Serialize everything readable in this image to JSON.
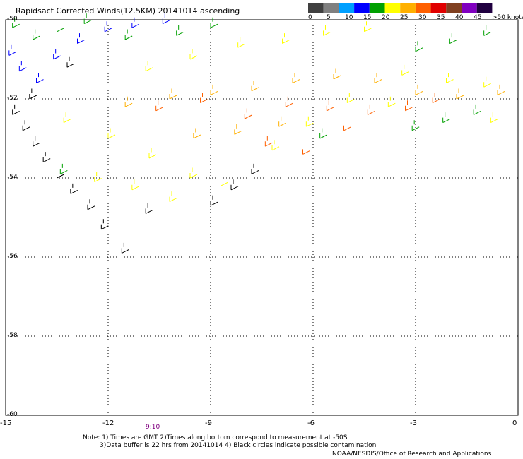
{
  "title": "Rapidsact Corrected Winds(12.5KM) 20141014 ascending",
  "legend": {
    "labels": [
      "0",
      "5",
      "10",
      "15",
      "20",
      "25",
      "30",
      "35",
      "40",
      "45",
      ">50 knots"
    ],
    "colors": [
      "#404040",
      "#808080",
      "#00a0ff",
      "#0000ff",
      "#00a000",
      "#ffff00",
      "#ffb000",
      "#ff6000",
      "#e00000",
      "#804020",
      "#8000c0",
      "#200040"
    ]
  },
  "axes": {
    "x_ticks": [
      "-15",
      "-12",
      "-9",
      "-6",
      "-3",
      "0"
    ],
    "y_ticks": [
      "-50",
      "-52",
      "-54",
      "-56",
      "-58",
      "-60"
    ]
  },
  "time_label": "9:10",
  "notes": {
    "line1": "Note: 1) Times are GMT 2)Times along bottom correspond to measurement at -50S",
    "line2": "3)Data buffer is 22 hrs from 20141014 4) Black circles indicate possible contamination",
    "credit": "NOAA/NESDIS/Office of Research and Applications"
  },
  "chart_data": {
    "type": "scatter",
    "title": "Rapidsact Corrected Winds(12.5KM) 20141014 ascending",
    "xlabel": "",
    "ylabel": "",
    "xlim": [
      -15,
      0
    ],
    "ylim": [
      -60,
      -50
    ],
    "series": [
      {
        "name": "0-5",
        "color": "#000000",
        "points": [
          [
            -14.8,
            -52.4
          ],
          [
            -14.5,
            -52.8
          ],
          [
            -14.2,
            -53.2
          ],
          [
            -13.9,
            -53.6
          ],
          [
            -13.5,
            -54.0
          ],
          [
            -13.1,
            -54.4
          ],
          [
            -12.6,
            -54.8
          ],
          [
            -12.2,
            -55.3
          ],
          [
            -11.6,
            -55.9
          ],
          [
            -10.9,
            -54.9
          ],
          [
            -9.0,
            -54.7
          ],
          [
            -8.4,
            -54.3
          ],
          [
            -7.8,
            -53.9
          ],
          [
            -14.3,
            -52.0
          ],
          [
            -13.2,
            -51.2
          ]
        ]
      },
      {
        "name": "5-10",
        "color": "#0000ff",
        "points": [
          [
            -14.6,
            -51.3
          ],
          [
            -14.1,
            -51.6
          ],
          [
            -13.6,
            -51.0
          ],
          [
            -12.9,
            -50.6
          ],
          [
            -12.1,
            -50.3
          ],
          [
            -11.3,
            -50.2
          ],
          [
            -10.4,
            -50.1
          ],
          [
            -14.9,
            -50.9
          ]
        ]
      },
      {
        "name": "10-15",
        "color": "#00a000",
        "points": [
          [
            -14.8,
            -50.2
          ],
          [
            -14.2,
            -50.5
          ],
          [
            -13.5,
            -50.3
          ],
          [
            -12.7,
            -50.1
          ],
          [
            -11.5,
            -50.5
          ],
          [
            -10.0,
            -50.4
          ],
          [
            -9.0,
            -50.2
          ],
          [
            -3.0,
            -50.8
          ],
          [
            -2.0,
            -50.6
          ],
          [
            -1.0,
            -50.4
          ],
          [
            -3.1,
            -52.8
          ],
          [
            -2.2,
            -52.6
          ],
          [
            -1.3,
            -52.4
          ],
          [
            -5.8,
            -53.0
          ],
          [
            -13.4,
            -53.9
          ]
        ]
      },
      {
        "name": "15-20",
        "color": "#ffff00",
        "points": [
          [
            -10.9,
            -51.3
          ],
          [
            -9.6,
            -51.0
          ],
          [
            -8.2,
            -50.7
          ],
          [
            -6.9,
            -50.6
          ],
          [
            -5.7,
            -50.4
          ],
          [
            -4.5,
            -50.3
          ],
          [
            -3.4,
            -51.4
          ],
          [
            -2.1,
            -51.6
          ],
          [
            -1.0,
            -51.7
          ],
          [
            -13.3,
            -52.6
          ],
          [
            -12.0,
            -53.0
          ],
          [
            -10.8,
            -53.5
          ],
          [
            -9.6,
            -54.0
          ],
          [
            -8.7,
            -54.2
          ],
          [
            -10.2,
            -54.6
          ],
          [
            -11.3,
            -54.3
          ],
          [
            -12.4,
            -54.1
          ],
          [
            -6.2,
            -52.7
          ],
          [
            -5.0,
            -52.1
          ],
          [
            -3.8,
            -52.2
          ],
          [
            -0.8,
            -52.6
          ],
          [
            -7.2,
            -53.3
          ]
        ]
      },
      {
        "name": "20-25",
        "color": "#ffb000",
        "points": [
          [
            -11.5,
            -52.2
          ],
          [
            -10.2,
            -52.0
          ],
          [
            -9.0,
            -51.9
          ],
          [
            -7.8,
            -51.8
          ],
          [
            -6.6,
            -51.6
          ],
          [
            -5.4,
            -51.5
          ],
          [
            -4.2,
            -51.6
          ],
          [
            -3.0,
            -51.9
          ],
          [
            -1.8,
            -52.0
          ],
          [
            -0.6,
            -51.9
          ],
          [
            -9.5,
            -53.0
          ],
          [
            -8.3,
            -52.9
          ],
          [
            -7.0,
            -52.7
          ]
        ]
      },
      {
        "name": "25-30",
        "color": "#ff6000",
        "points": [
          [
            -10.6,
            -52.3
          ],
          [
            -9.3,
            -52.1
          ],
          [
            -8.0,
            -52.5
          ],
          [
            -6.8,
            -52.2
          ],
          [
            -5.6,
            -52.3
          ],
          [
            -4.4,
            -52.4
          ],
          [
            -3.3,
            -52.3
          ],
          [
            -2.5,
            -52.1
          ],
          [
            -7.4,
            -53.2
          ],
          [
            -6.3,
            -53.4
          ],
          [
            -5.1,
            -52.8
          ]
        ]
      }
    ]
  }
}
